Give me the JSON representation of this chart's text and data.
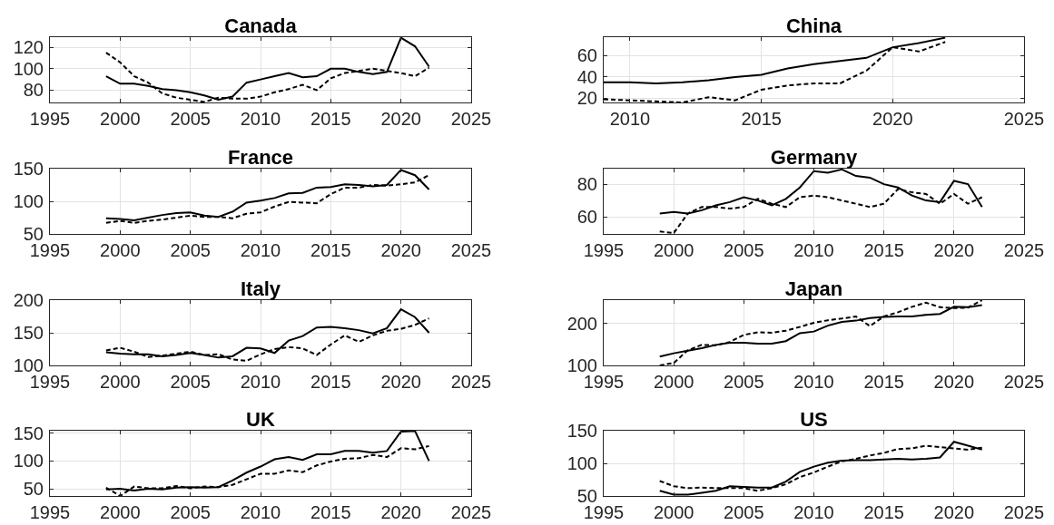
{
  "chart_data": [
    {
      "type": "line",
      "title": "Canada",
      "x": [
        1999,
        2000,
        2001,
        2002,
        2003,
        2004,
        2005,
        2006,
        2007,
        2008,
        2009,
        2010,
        2011,
        2012,
        2013,
        2014,
        2015,
        2016,
        2017,
        2018,
        2019,
        2020,
        2021,
        2022
      ],
      "series": [
        {
          "color": "#000000",
          "line_style": "solid",
          "values": [
            93,
            86,
            86,
            84,
            81,
            80,
            78,
            75,
            71,
            74,
            87,
            90,
            93,
            96,
            92,
            93,
            100,
            100,
            97,
            95,
            97,
            129,
            121,
            102
          ]
        },
        {
          "color": "#000000",
          "line_style": "dashed",
          "values": [
            115,
            106,
            93,
            87,
            77,
            73,
            71,
            69,
            73,
            72,
            72,
            74,
            78,
            81,
            85,
            80,
            91,
            96,
            98,
            100,
            98,
            96,
            93,
            101
          ]
        }
      ],
      "xlim": [
        1995,
        2025
      ],
      "xticks": [
        1995,
        2000,
        2005,
        2010,
        2015,
        2020,
        2025
      ],
      "ylim": [
        68.5,
        129.5
      ],
      "yticks": [
        80,
        100,
        120
      ],
      "grid": true
    },
    {
      "type": "line",
      "title": "China",
      "x": [
        2009,
        2010,
        2011,
        2012,
        2013,
        2014,
        2015,
        2016,
        2017,
        2018,
        2019,
        2020,
        2021,
        2022
      ],
      "series": [
        {
          "color": "#000000",
          "line_style": "solid",
          "values": [
            35,
            35,
            34,
            35,
            37,
            40,
            42,
            48,
            52,
            55,
            58,
            68,
            72,
            77
          ]
        },
        {
          "color": "#000000",
          "line_style": "dashed",
          "values": [
            19,
            18,
            17,
            16,
            21,
            18,
            28,
            32,
            34,
            34,
            46,
            68,
            64,
            73
          ]
        }
      ],
      "xlim": [
        2009,
        2025
      ],
      "xticks": [
        2010,
        2015,
        2020,
        2025
      ],
      "ylim": [
        16,
        77.5
      ],
      "yticks": [
        20,
        40,
        60
      ],
      "grid": true
    },
    {
      "type": "line",
      "title": "France",
      "x": [
        1999,
        2000,
        2001,
        2002,
        2003,
        2004,
        2005,
        2006,
        2007,
        2008,
        2009,
        2010,
        2011,
        2012,
        2013,
        2014,
        2015,
        2016,
        2017,
        2018,
        2019,
        2020,
        2021,
        2022
      ],
      "series": [
        {
          "color": "#000000",
          "line_style": "solid",
          "values": [
            74,
            73,
            71,
            75,
            79,
            82,
            83,
            78,
            76,
            84,
            98,
            101,
            105,
            112,
            113,
            121,
            122,
            126,
            125,
            123,
            125,
            148,
            140,
            118
          ]
        },
        {
          "color": "#000000",
          "line_style": "dashed",
          "values": [
            67,
            70,
            67,
            70,
            72,
            75,
            78,
            76,
            76,
            74,
            81,
            83,
            92,
            99,
            98,
            97,
            111,
            121,
            121,
            125,
            124,
            126,
            129,
            140
          ]
        }
      ],
      "xlim": [
        1995,
        2025
      ],
      "xticks": [
        1995,
        2000,
        2005,
        2010,
        2015,
        2020,
        2025
      ],
      "ylim": [
        50,
        150
      ],
      "yticks": [
        50,
        100,
        150
      ],
      "grid": true
    },
    {
      "type": "line",
      "title": "Germany",
      "x": [
        1999,
        2000,
        2001,
        2002,
        2003,
        2004,
        2005,
        2006,
        2007,
        2008,
        2009,
        2010,
        2011,
        2012,
        2013,
        2014,
        2015,
        2016,
        2017,
        2018,
        2019,
        2020,
        2021,
        2022
      ],
      "series": [
        {
          "color": "#000000",
          "line_style": "solid",
          "values": [
            62,
            63,
            62,
            64,
            67,
            69,
            72,
            70,
            67,
            71,
            78,
            88,
            87,
            89,
            85,
            84,
            80,
            78,
            73,
            70,
            69,
            82,
            80,
            66
          ]
        },
        {
          "color": "#000000",
          "line_style": "dashed",
          "values": [
            51,
            50,
            62,
            66,
            66,
            65,
            66,
            71,
            68,
            66,
            72,
            73,
            72,
            70,
            68,
            66,
            68,
            77,
            75,
            74,
            68,
            74,
            68,
            72
          ]
        }
      ],
      "xlim": [
        1995,
        2025
      ],
      "xticks": [
        1995,
        2000,
        2005,
        2010,
        2015,
        2020,
        2025
      ],
      "ylim": [
        49.5,
        89.5
      ],
      "yticks": [
        60,
        80
      ],
      "grid": true
    },
    {
      "type": "line",
      "title": "Italy",
      "x": [
        1999,
        2000,
        2001,
        2002,
        2003,
        2004,
        2005,
        2006,
        2007,
        2008,
        2009,
        2010,
        2011,
        2012,
        2013,
        2014,
        2015,
        2016,
        2017,
        2018,
        2019,
        2020,
        2021,
        2022
      ],
      "series": [
        {
          "color": "#000000",
          "line_style": "solid",
          "values": [
            120,
            118,
            117,
            117,
            114,
            116,
            119,
            116,
            112,
            114,
            127,
            126,
            119,
            138,
            145,
            158,
            159,
            157,
            154,
            149,
            157,
            186,
            174,
            150
          ]
        },
        {
          "color": "#000000",
          "line_style": "dashed",
          "values": [
            123,
            127,
            121,
            113,
            115,
            118,
            121,
            116,
            117,
            109,
            107,
            117,
            125,
            128,
            126,
            116,
            132,
            146,
            136,
            146,
            153,
            156,
            162,
            172
          ]
        }
      ],
      "xlim": [
        1995,
        2025
      ],
      "xticks": [
        1995,
        2000,
        2005,
        2010,
        2015,
        2020,
        2025
      ],
      "ylim": [
        100,
        200
      ],
      "yticks": [
        100,
        150,
        200
      ],
      "grid": true
    },
    {
      "type": "line",
      "title": "Japan",
      "x": [
        1999,
        2000,
        2001,
        2002,
        2003,
        2004,
        2005,
        2006,
        2007,
        2008,
        2009,
        2010,
        2011,
        2012,
        2013,
        2014,
        2015,
        2016,
        2017,
        2018,
        2019,
        2020,
        2021,
        2022
      ],
      "series": [
        {
          "color": "#000000",
          "line_style": "solid",
          "values": [
            121,
            129,
            135,
            141,
            149,
            154,
            154,
            152,
            152,
            158,
            177,
            181,
            195,
            204,
            207,
            213,
            216,
            217,
            217,
            221,
            223,
            240,
            239,
            244
          ]
        },
        {
          "color": "#000000",
          "line_style": "dashed",
          "values": [
            100,
            106,
            136,
            149,
            148,
            156,
            173,
            179,
            178,
            183,
            192,
            202,
            208,
            212,
            217,
            194,
            217,
            227,
            240,
            250,
            239,
            237,
            238,
            256
          ]
        }
      ],
      "xlim": [
        1995,
        2025
      ],
      "xticks": [
        1995,
        2000,
        2005,
        2010,
        2015,
        2020,
        2025
      ],
      "ylim": [
        100,
        256
      ],
      "yticks": [
        100,
        200
      ],
      "grid": true
    },
    {
      "type": "line",
      "title": "UK",
      "x": [
        1999,
        2000,
        2001,
        2002,
        2003,
        2004,
        2005,
        2006,
        2007,
        2008,
        2009,
        2010,
        2011,
        2012,
        2013,
        2014,
        2015,
        2016,
        2017,
        2018,
        2019,
        2020,
        2021,
        2022
      ],
      "series": [
        {
          "color": "#000000",
          "line_style": "solid",
          "values": [
            49,
            50,
            47,
            50,
            49,
            52,
            53,
            52,
            53,
            65,
            79,
            90,
            103,
            107,
            102,
            112,
            112,
            118,
            118,
            115,
            118,
            153,
            154,
            100
          ]
        },
        {
          "color": "#000000",
          "line_style": "dashed",
          "values": [
            52,
            37,
            54,
            51,
            51,
            55,
            51,
            54,
            53,
            57,
            67,
            77,
            77,
            83,
            80,
            92,
            99,
            104,
            105,
            111,
            107,
            123,
            121,
            127
          ]
        }
      ],
      "xlim": [
        1995,
        2025
      ],
      "xticks": [
        1995,
        2000,
        2005,
        2010,
        2015,
        2020,
        2025
      ],
      "ylim": [
        37,
        154.5
      ],
      "yticks": [
        50,
        100,
        150
      ],
      "grid": true
    },
    {
      "type": "line",
      "title": "US",
      "x": [
        1999,
        2000,
        2001,
        2002,
        2003,
        2004,
        2005,
        2006,
        2007,
        2008,
        2009,
        2010,
        2011,
        2012,
        2013,
        2014,
        2015,
        2016,
        2017,
        2018,
        2019,
        2020,
        2021,
        2022
      ],
      "series": [
        {
          "color": "#000000",
          "line_style": "solid",
          "values": [
            58,
            52,
            52,
            55,
            58,
            65,
            64,
            63,
            63,
            72,
            87,
            95,
            101,
            104,
            105,
            105,
            106,
            107,
            106,
            107,
            109,
            133,
            127,
            121
          ]
        },
        {
          "color": "#000000",
          "line_style": "dashed",
          "values": [
            73,
            65,
            62,
            63,
            62,
            62,
            62,
            58,
            62,
            68,
            79,
            86,
            95,
            103,
            107,
            112,
            116,
            122,
            123,
            127,
            125,
            123,
            121,
            124
          ]
        }
      ],
      "xlim": [
        1995,
        2025
      ],
      "xticks": [
        1995,
        2000,
        2005,
        2010,
        2015,
        2020,
        2025
      ],
      "ylim": [
        50,
        150
      ],
      "yticks": [
        50,
        100,
        150
      ],
      "grid": true
    }
  ]
}
